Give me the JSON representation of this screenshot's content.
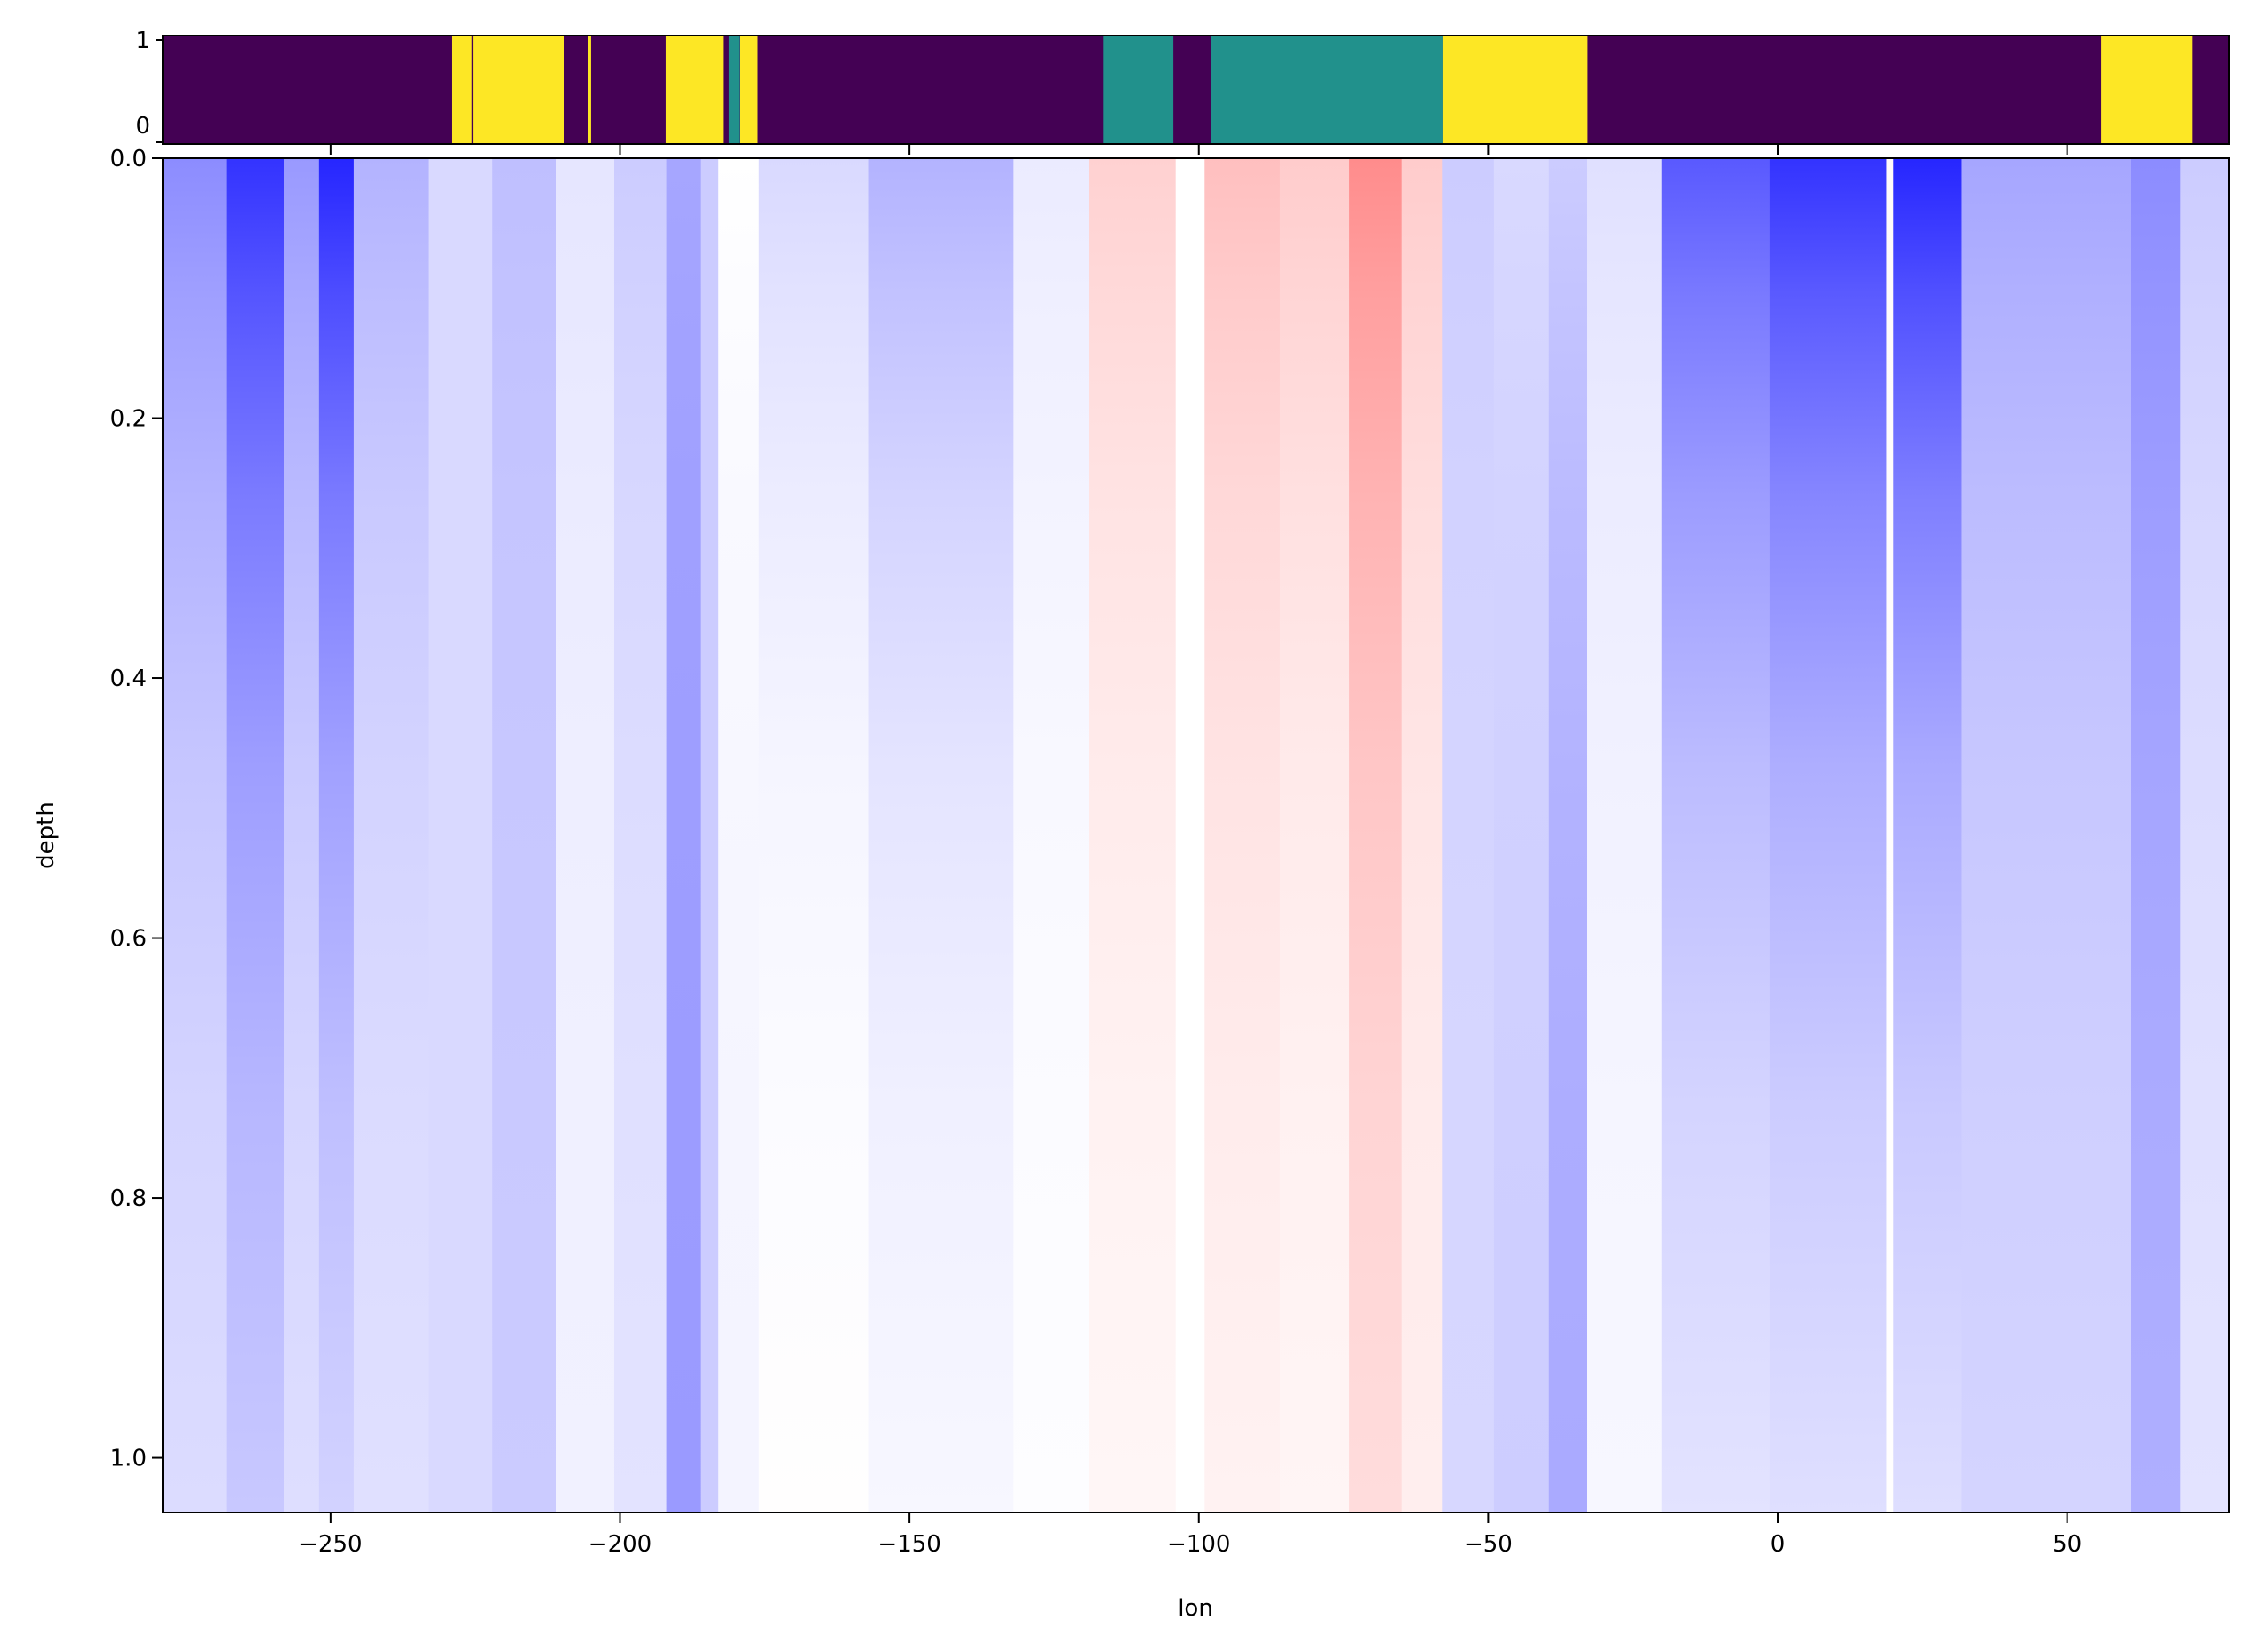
{
  "chart_data": [
    {
      "type": "heatmap",
      "panel": "top-strip",
      "xlim": [
        -279,
        78
      ],
      "ylim": [
        0,
        1
      ],
      "yticks": [
        "0",
        "1"
      ],
      "colormap": "viridis",
      "colors": {
        "0": "#440154",
        "1": "#21918c",
        "2": "#fde725"
      },
      "default_class": 0,
      "segments": [
        {
          "from": -229.1,
          "to": -225.6,
          "class": 2
        },
        {
          "from": -225.4,
          "to": -209.7,
          "class": 2
        },
        {
          "from": -205.5,
          "to": -205.0,
          "class": 2
        },
        {
          "from": -192.1,
          "to": -182.2,
          "class": 2
        },
        {
          "from": -181.2,
          "to": -179.4,
          "class": 1
        },
        {
          "from": -179.2,
          "to": -176.2,
          "class": 2
        },
        {
          "from": -116.5,
          "to": -104.4,
          "class": 1
        },
        {
          "from": -97.9,
          "to": -57.9,
          "class": 1
        },
        {
          "from": -57.9,
          "to": -32.8,
          "class": 2
        },
        {
          "from": 55.9,
          "to": 71.6,
          "class": 2
        }
      ]
    },
    {
      "type": "heatmap",
      "panel": "main",
      "xlabel": "lon",
      "ylabel": "depth",
      "xlim": [
        -279,
        78
      ],
      "ylim": [
        1.042,
        0
      ],
      "xticks": [
        "-250",
        "-200",
        "-150",
        "-100",
        "-50",
        "0",
        "50"
      ],
      "xtick_values": [
        -250,
        -200,
        -150,
        -100,
        -50,
        0,
        50
      ],
      "yticks": [
        "0.0",
        "0.2",
        "0.4",
        "0.6",
        "0.8",
        "1.0"
      ],
      "ytick_values": [
        0,
        0.2,
        0.4,
        0.6,
        0.8,
        1.0
      ],
      "colormap": "bwr",
      "vlim": [
        -1,
        1
      ],
      "bands_note_fields": [
        "lon_from",
        "lon_to",
        "value_at_surface",
        "value_at_depth_1"
      ],
      "bands": [
        [
          -279,
          -268,
          -0.45,
          -0.1
        ],
        [
          -268,
          -258,
          -0.8,
          -0.15
        ],
        [
          -258,
          -252,
          -0.4,
          -0.1
        ],
        [
          -252,
          -246,
          -0.85,
          -0.1
        ],
        [
          -246,
          -233,
          -0.3,
          -0.1
        ],
        [
          -233,
          -222,
          -0.15,
          -0.15
        ],
        [
          -222,
          -211,
          -0.25,
          -0.2
        ],
        [
          -211,
          -201,
          -0.1,
          -0.05
        ],
        [
          -201,
          -192,
          -0.2,
          -0.1
        ],
        [
          -192,
          -186,
          -0.35,
          -0.4
        ],
        [
          -186,
          -183,
          -0.2,
          -0.2
        ],
        [
          -183,
          -176,
          0.0,
          -0.05
        ],
        [
          -176,
          -157,
          -0.15,
          0.02
        ],
        [
          -157,
          -132,
          -0.3,
          0.0
        ],
        [
          -132,
          -119,
          -0.08,
          0.0
        ],
        [
          -119,
          -104,
          0.18,
          0.02
        ],
        [
          -104,
          -99,
          0.0,
          0.0
        ],
        [
          -99,
          -86,
          0.25,
          0.03
        ],
        [
          -86,
          -74,
          0.2,
          0.02
        ],
        [
          -74,
          -65,
          0.45,
          0.1
        ],
        [
          -65,
          -58,
          0.2,
          0.05
        ],
        [
          -58,
          -49,
          -0.2,
          -0.15
        ],
        [
          -49,
          -39.5,
          -0.15,
          -0.2
        ],
        [
          -39.5,
          -33,
          -0.2,
          -0.35
        ],
        [
          -33,
          -20,
          -0.12,
          -0.02
        ],
        [
          -20,
          -1.4,
          -0.65,
          -0.05
        ],
        [
          -1.4,
          18.8,
          -0.8,
          -0.05
        ],
        [
          18.8,
          20,
          0.02,
          0.0
        ],
        [
          20,
          31.7,
          -0.85,
          -0.05
        ],
        [
          31.7,
          61,
          -0.35,
          -0.15
        ],
        [
          61,
          69.6,
          -0.45,
          -0.3
        ],
        [
          69.6,
          78,
          -0.2,
          -0.1
        ]
      ]
    }
  ]
}
